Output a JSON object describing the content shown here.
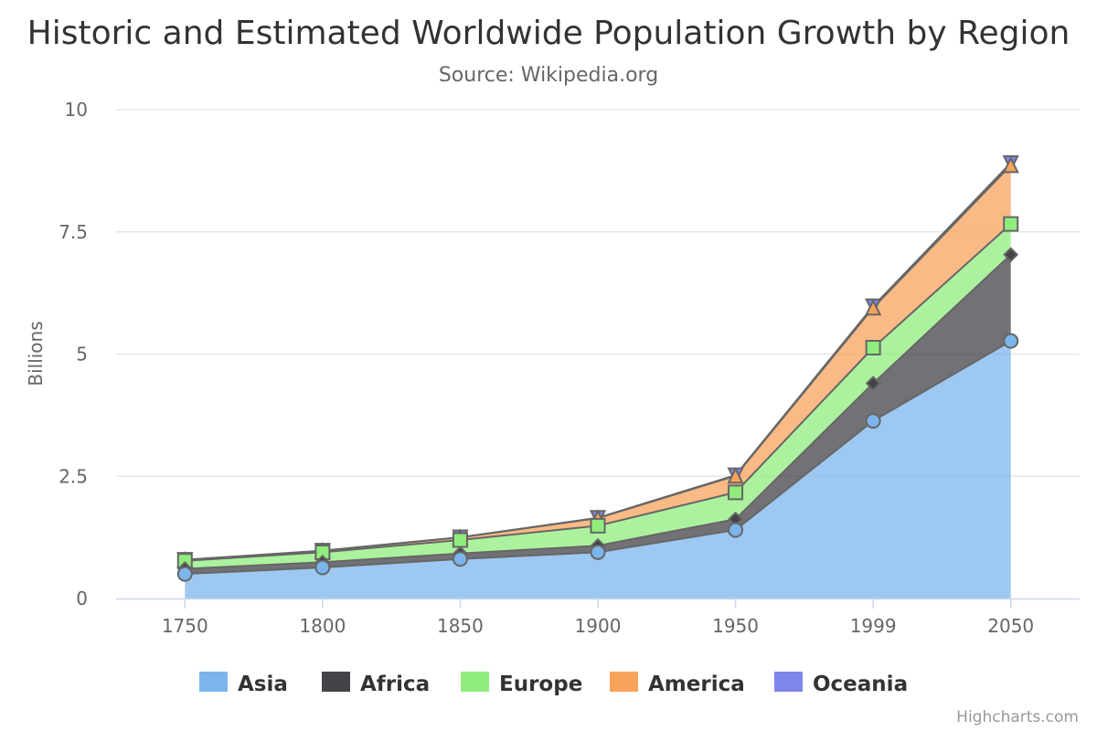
{
  "chart_data": {
    "type": "area",
    "stacking": "normal",
    "title": "Historic and Estimated Worldwide Population Growth by Region",
    "subtitle": "Source: Wikipedia.org",
    "ylabel": "Billions",
    "xlabel": "",
    "categories": [
      "1750",
      "1800",
      "1850",
      "1900",
      "1950",
      "1999",
      "2050"
    ],
    "ylim": [
      0,
      10
    ],
    "yticks": [
      0,
      2.5,
      5,
      7.5,
      10
    ],
    "ytick_labels": [
      "0",
      "2.5",
      "5",
      "7.5",
      "10"
    ],
    "grid": true,
    "legend_placement": "bottom-center",
    "series": [
      {
        "name": "Asia",
        "color": "#7cb5ec",
        "marker": "circle",
        "values": [
          0.502,
          0.635,
          0.809,
          0.947,
          1.402,
          3.634,
          5.268
        ]
      },
      {
        "name": "Africa",
        "color": "#434348",
        "marker": "diamond",
        "values": [
          0.106,
          0.107,
          0.111,
          0.133,
          0.221,
          0.767,
          1.766
        ]
      },
      {
        "name": "Europe",
        "color": "#90ed7d",
        "marker": "square",
        "values": [
          0.163,
          0.203,
          0.276,
          0.408,
          0.547,
          0.729,
          0.628
        ]
      },
      {
        "name": "America",
        "color": "#f7a35c",
        "marker": "triangle",
        "values": [
          0.018,
          0.031,
          0.054,
          0.156,
          0.339,
          0.818,
          1.201
        ]
      },
      {
        "name": "Oceania",
        "color": "#8085e9",
        "marker": "triangle-down",
        "values": [
          0.002,
          0.002,
          0.002,
          0.006,
          0.013,
          0.03,
          0.046
        ]
      }
    ]
  },
  "credits": "Highcharts.com"
}
